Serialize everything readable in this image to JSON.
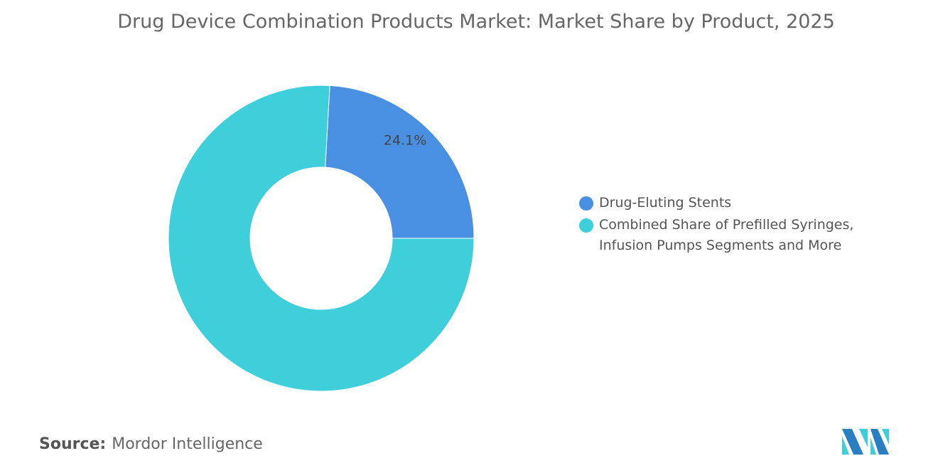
{
  "title": "Drug Device Combination Products Market: Market Share by Product, 2025",
  "chart_data": {
    "type": "pie",
    "donut": true,
    "title": "Drug Device Combination Products Market: Market Share by Product, 2025",
    "categories": [
      "Drug-Eluting Stents",
      "Combined Share of Prefilled Syringes, Infusion Pumps Segments and More"
    ],
    "values": [
      24.1,
      75.9
    ],
    "colors": [
      "#4a90e2",
      "#3fcfdb"
    ],
    "data_labels": [
      "24.1%",
      ""
    ],
    "legend_position": "right"
  },
  "source": {
    "label": "Source:",
    "value": "Mordor Intelligence"
  },
  "logo": "Mordor Intelligence logo"
}
